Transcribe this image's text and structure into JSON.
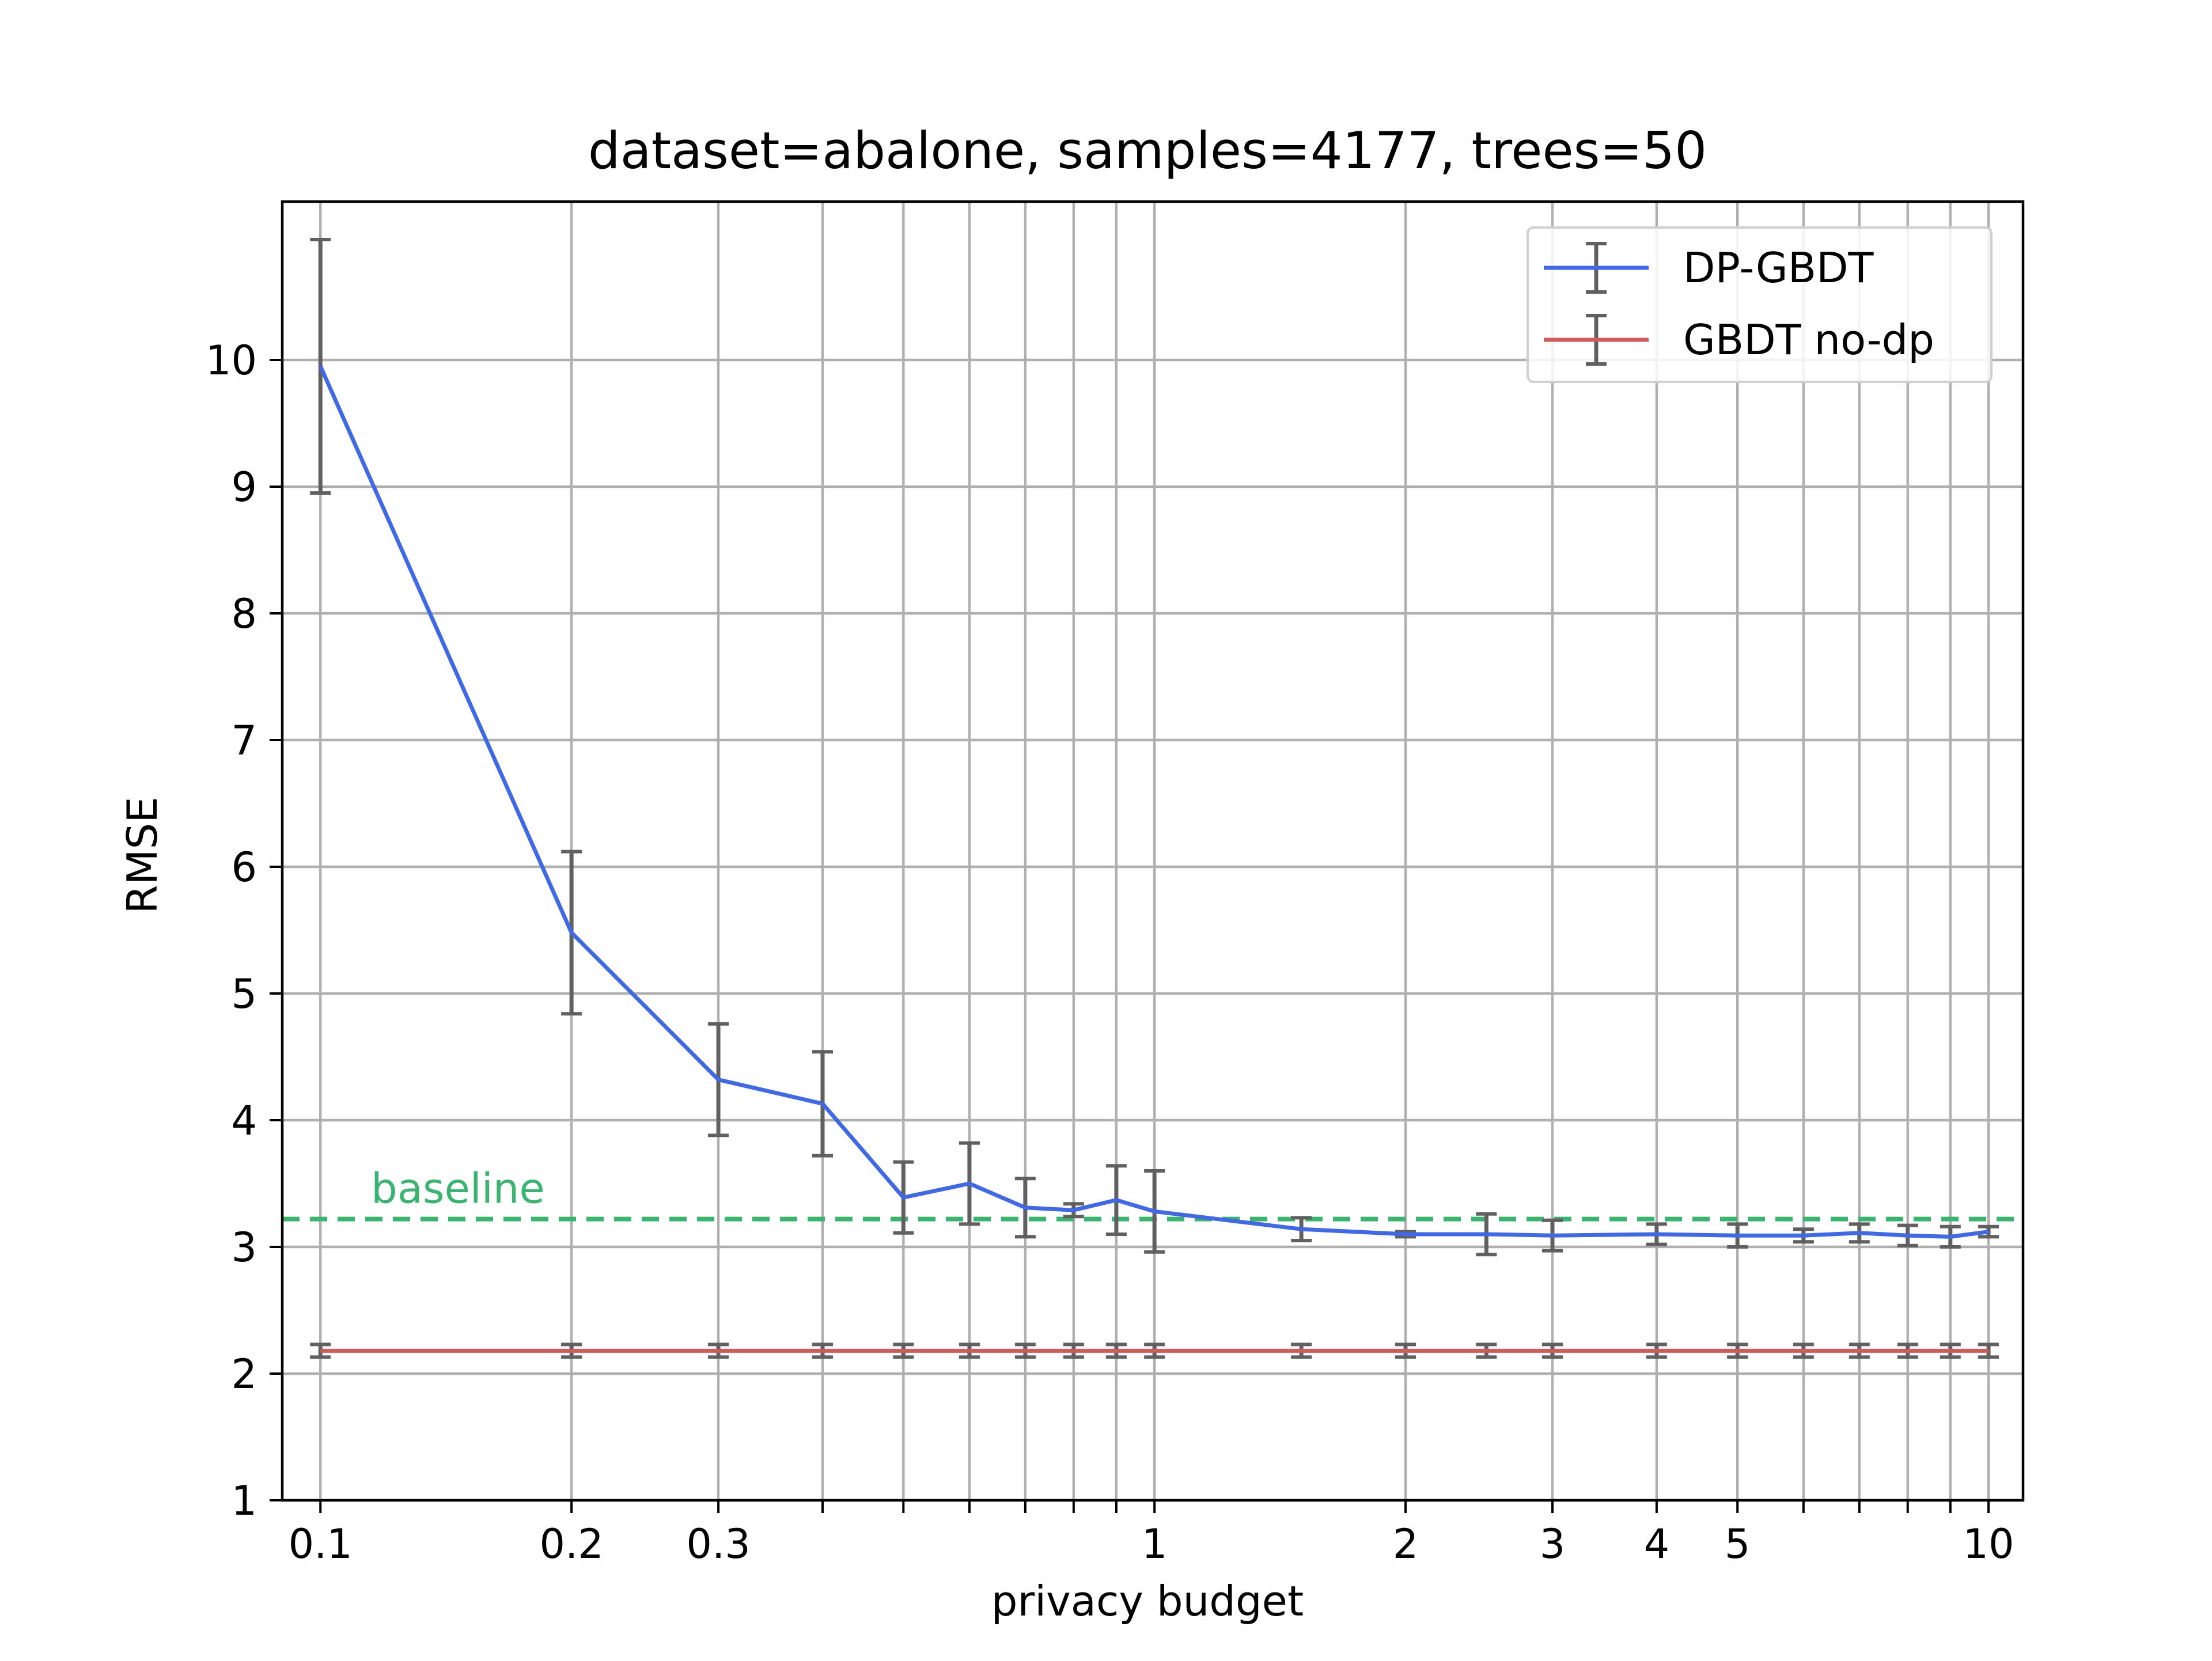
{
  "chart_data": {
    "type": "line",
    "title": "dataset=abalone, samples=4177, trees=50",
    "xlabel": "privacy budget",
    "ylabel": "RMSE",
    "x_scale": "log",
    "xlim": [
      0.09,
      11
    ],
    "ylim": [
      1,
      11.25
    ],
    "x_ticks": [
      0.1,
      0.2,
      0.3,
      1,
      2,
      3,
      4,
      5,
      10
    ],
    "x_tick_labels": [
      "0.1",
      "0.2",
      "0.3",
      "1",
      "2",
      "3",
      "4",
      "5",
      "10"
    ],
    "y_ticks": [
      1,
      2,
      3,
      4,
      5,
      6,
      7,
      8,
      9,
      10
    ],
    "y_tick_labels": [
      "1",
      "2",
      "3",
      "4",
      "5",
      "6",
      "7",
      "8",
      "9",
      "10"
    ],
    "grid": true,
    "legend_position": "top-right",
    "x": [
      0.1,
      0.2,
      0.3,
      0.4,
      0.5,
      0.6,
      0.7,
      0.8,
      0.9,
      1,
      1.5,
      2,
      2.5,
      3,
      4,
      5,
      6,
      7,
      8,
      9,
      10
    ],
    "series": [
      {
        "name": "DP-GBDT",
        "color": "#4169e1",
        "values": [
          9.95,
          5.48,
          4.32,
          4.13,
          3.39,
          3.5,
          3.31,
          3.29,
          3.37,
          3.28,
          3.14,
          3.1,
          3.1,
          3.09,
          3.1,
          3.09,
          3.09,
          3.11,
          3.09,
          3.08,
          3.12
        ],
        "error": [
          1.0,
          0.64,
          0.44,
          0.41,
          0.28,
          0.32,
          0.23,
          0.05,
          0.27,
          0.32,
          0.09,
          0.02,
          0.16,
          0.12,
          0.08,
          0.09,
          0.05,
          0.07,
          0.08,
          0.08,
          0.04
        ]
      },
      {
        "name": "GBDT no-dp",
        "color": "#cd5c5c",
        "values": [
          2.18,
          2.18,
          2.18,
          2.18,
          2.18,
          2.18,
          2.18,
          2.18,
          2.18,
          2.18,
          2.18,
          2.18,
          2.18,
          2.18,
          2.18,
          2.18,
          2.18,
          2.18,
          2.18,
          2.18,
          2.18
        ],
        "error": [
          0.05,
          0.05,
          0.05,
          0.05,
          0.05,
          0.05,
          0.05,
          0.05,
          0.05,
          0.05,
          0.05,
          0.05,
          0.05,
          0.05,
          0.05,
          0.05,
          0.05,
          0.05,
          0.05,
          0.05,
          0.05
        ]
      }
    ],
    "errorbar_color": "#606060",
    "baseline": {
      "label": "baseline",
      "value": 3.22,
      "color": "#3cb371",
      "style": "dashed"
    }
  }
}
